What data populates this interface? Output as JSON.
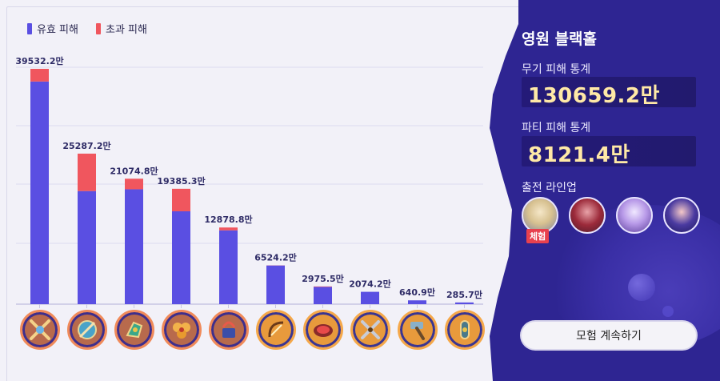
{
  "legend": {
    "effective": "유효 피해",
    "overflow": "초과 피해"
  },
  "info": {
    "title": "영원 블랙홀",
    "weapon_label": "무기 피해 통계",
    "weapon_value": "130659.2만",
    "party_label": "파티 피해 통계",
    "party_value": "8121.4만",
    "lineup_label": "출전 라인업",
    "trial_badge": "체험",
    "continue_button": "모험 계속하기"
  },
  "colors": {
    "effective": "#5a4fe2",
    "overflow": "#f0565e",
    "accent": "#ffe9a6"
  },
  "chart_data": {
    "type": "bar",
    "stacked": true,
    "categories": [
      "",
      "",
      "",
      "",
      "",
      "",
      "",
      "",
      "",
      ""
    ],
    "labels": [
      "39532.2만",
      "25287.2만",
      "21074.8만",
      "19385.3만",
      "12878.8만",
      "6524.2만",
      "2975.5만",
      "2074.2만",
      "640.9만",
      "285.7만"
    ],
    "series": [
      {
        "name": "유효 피해",
        "values": [
          37400,
          19000,
          19300,
          15600,
          12400,
          6500,
          2900,
          2074.2,
          640.9,
          285.7
        ]
      },
      {
        "name": "초과 피해",
        "values": [
          2132.2,
          6287.2,
          1774.8,
          3785.3,
          478.8,
          24.2,
          75.5,
          0,
          0,
          0
        ]
      }
    ],
    "totals": [
      39532.2,
      25287.2,
      21074.8,
      19385.3,
      12878.8,
      6524.2,
      2975.5,
      2074.2,
      640.9,
      285.7
    ],
    "ylim": [
      0,
      40000
    ],
    "grid": true,
    "legend_position": "top-left"
  },
  "weapons": [
    {
      "icon": "crossed-blades-icon",
      "rarity": "purple"
    },
    {
      "icon": "compass-disc-icon",
      "rarity": "purple"
    },
    {
      "icon": "claw-gauntlet-icon",
      "rarity": "purple"
    },
    {
      "icon": "flower-fan-icon",
      "rarity": "purple"
    },
    {
      "icon": "bow-chest-icon",
      "rarity": "purple"
    },
    {
      "icon": "golden-bow-icon",
      "rarity": "gold"
    },
    {
      "icon": "ruby-disc-icon",
      "rarity": "gold"
    },
    {
      "icon": "crossed-swords-icon",
      "rarity": "gold"
    },
    {
      "icon": "hammer-icon",
      "rarity": "gold"
    },
    {
      "icon": "amulet-icon",
      "rarity": "gold"
    }
  ]
}
